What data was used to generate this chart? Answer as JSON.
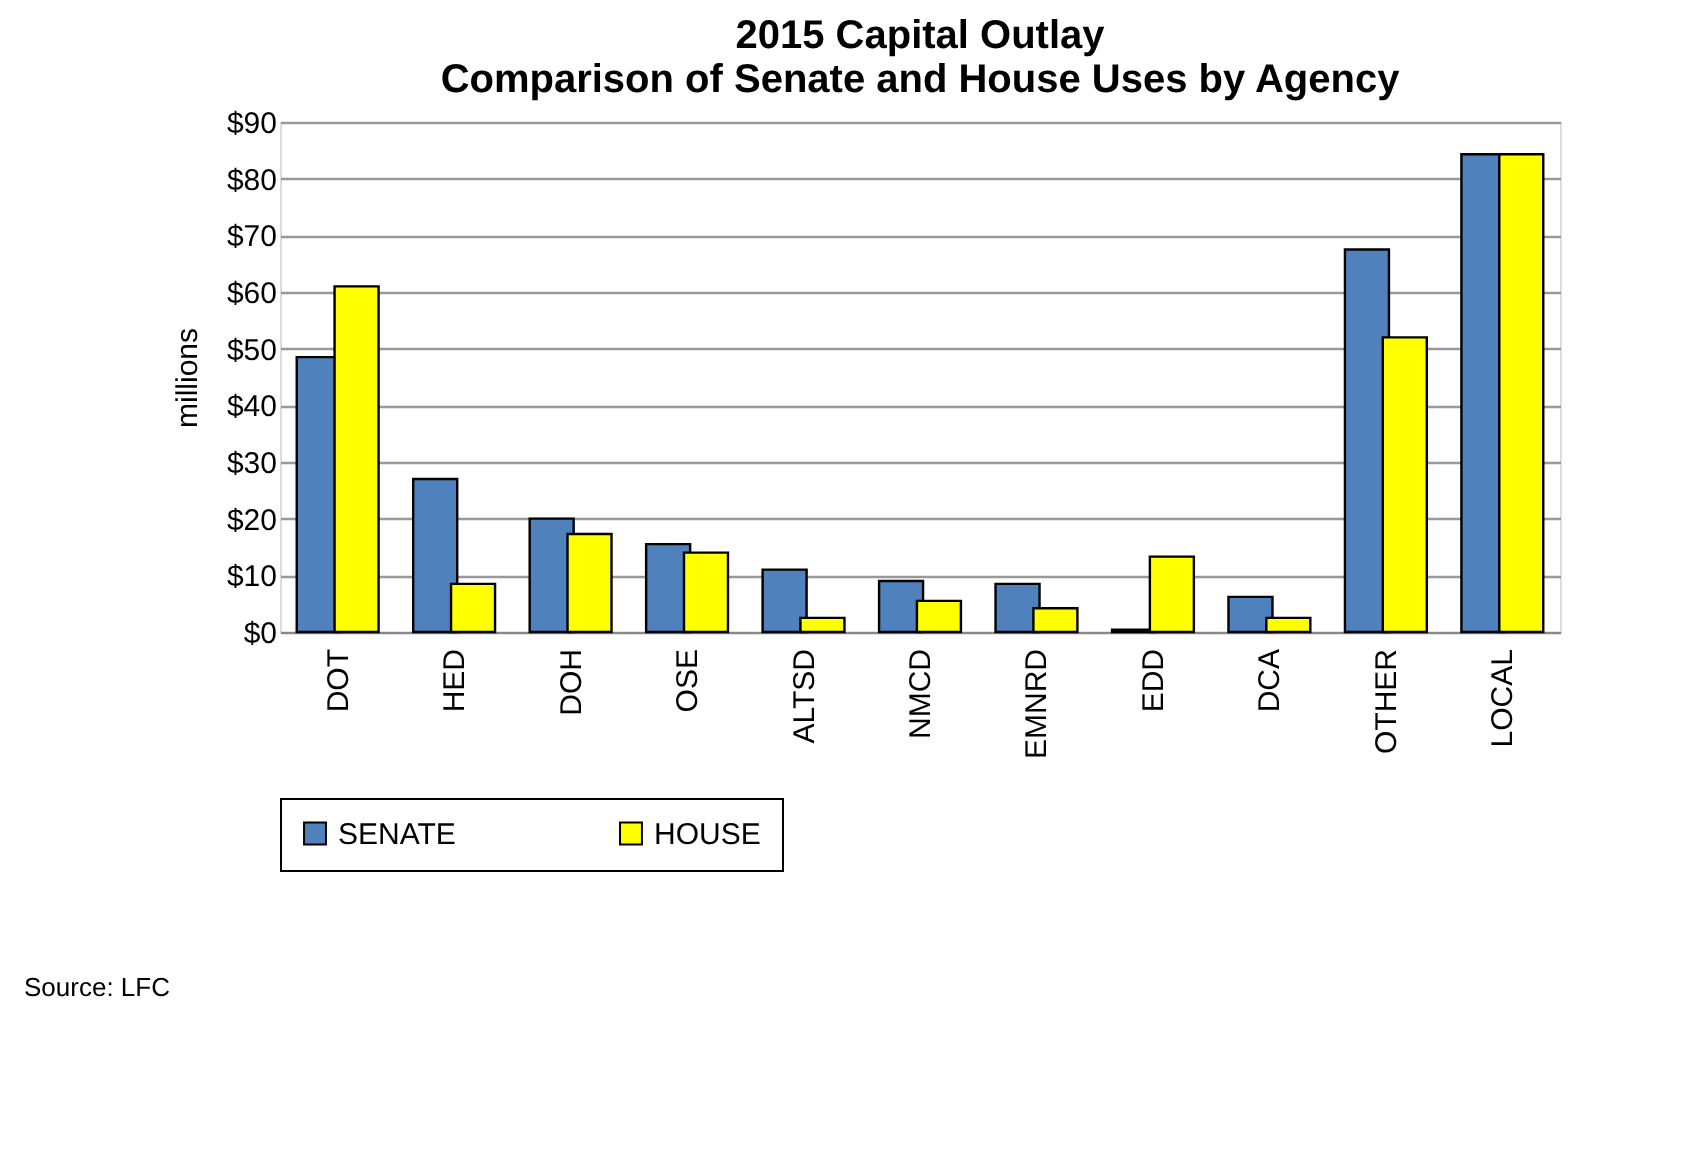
{
  "chart_data": {
    "type": "bar",
    "title": [
      "2015 Capital Outlay",
      "Comparison of Senate and House Uses by Agency"
    ],
    "ylabel": "millions",
    "categories": [
      "DOT",
      "HED",
      "DOH",
      "OSE",
      "ALTSD",
      "NMCD",
      "EMNRD",
      "EDD",
      "DCA",
      "OTHER",
      "LOCAL"
    ],
    "series": [
      {
        "name": "SENATE",
        "color": "#4f81bd",
        "values": [
          48.5,
          27,
          20,
          15.5,
          11,
          9,
          8.5,
          0.4,
          6.2,
          67.5,
          84.3
        ]
      },
      {
        "name": "HOUSE",
        "color": "#ffff00",
        "values": [
          61,
          8.5,
          17.3,
          14,
          2.5,
          5.5,
          4.2,
          13.3,
          2.5,
          52,
          84.3
        ]
      }
    ],
    "ylim": [
      0,
      90
    ],
    "yticks": [
      {
        "value": 0,
        "label": "$0"
      },
      {
        "value": 10,
        "label": "$10"
      },
      {
        "value": 20,
        "label": "$20"
      },
      {
        "value": 30,
        "label": "$30"
      },
      {
        "value": 40,
        "label": "$40"
      },
      {
        "value": 50,
        "label": "$50"
      },
      {
        "value": 60,
        "label": "$60"
      },
      {
        "value": 70,
        "label": "$70"
      },
      {
        "value": 80,
        "label": "$80"
      },
      {
        "value": 90,
        "label": "$90"
      }
    ],
    "grid": "y",
    "legend": "bottom",
    "annotations": [
      "Source: LFC"
    ]
  }
}
